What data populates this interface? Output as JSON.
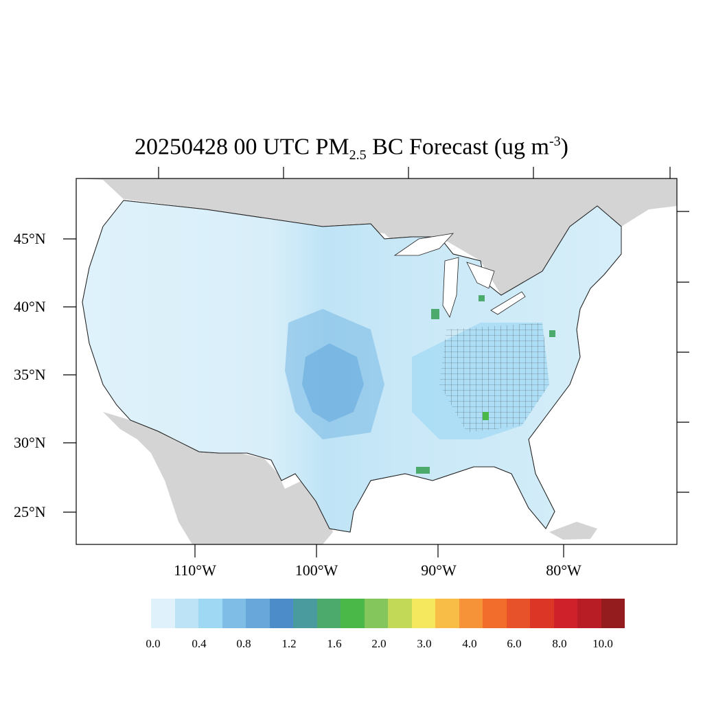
{
  "title": {
    "prefix": "20250428 00 UTC PM",
    "subscript": "2.5",
    "middle": " BC Forecast (ug m",
    "superscript": "-3",
    "suffix": ")"
  },
  "map": {
    "region": "Contiguous United States (county-level)",
    "land_outside_color": "#d4d4d4",
    "water_color": "#ffffff",
    "county_edge_color": "#000000"
  },
  "axes": {
    "lat_labels": [
      "45°N",
      "40°N",
      "35°N",
      "30°N",
      "25°N"
    ],
    "lon_labels": [
      "110°W",
      "100°W",
      "90°W",
      "80°W"
    ]
  },
  "colorbar": {
    "colors": [
      "#dff2fb",
      "#bde3f6",
      "#9fd8f3",
      "#7fbde6",
      "#67a7da",
      "#4b8cc9",
      "#4a9b9e",
      "#4caa6c",
      "#4ab848",
      "#84c65b",
      "#c1d957",
      "#f5e85e",
      "#f8bd47",
      "#f69338",
      "#f26d2b",
      "#e8522b",
      "#dc3626",
      "#cf2129",
      "#b81c24",
      "#941b1e"
    ],
    "tick_labels": [
      "0.0",
      "0.4",
      "0.8",
      "1.2",
      "1.6",
      "2.0",
      "3.0",
      "4.0",
      "6.0",
      "8.0",
      "10.0"
    ]
  },
  "legend_meta": {
    "dominant_value_range": "0.0 - 1.2",
    "hotspot_range": "1.6 - 2.0"
  }
}
